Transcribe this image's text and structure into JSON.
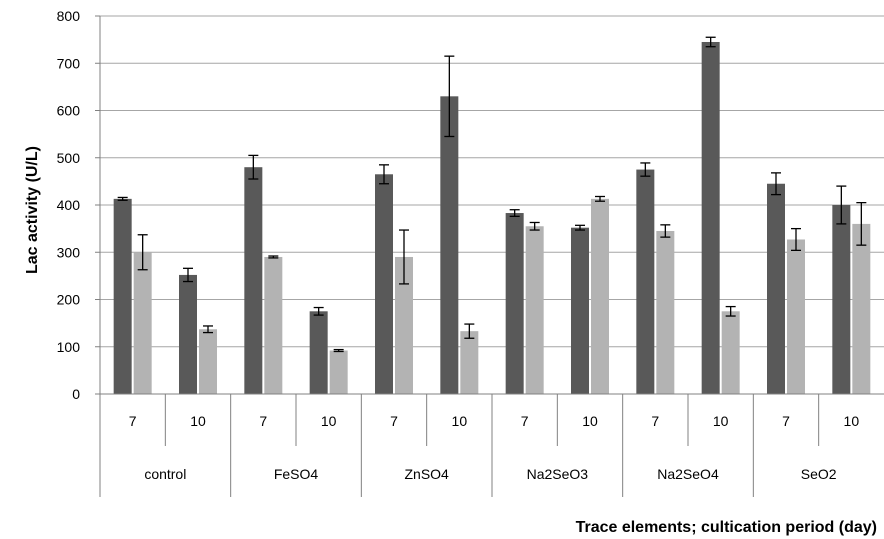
{
  "chart_data": {
    "type": "bar",
    "title": "",
    "ylabel": "Lac activity (U/L)",
    "xlabel": "Trace elements; cultication period (day)",
    "ylim": [
      0,
      800
    ],
    "yticks": [
      0,
      100,
      200,
      300,
      400,
      500,
      600,
      700,
      800
    ],
    "grid": true,
    "legend": "none",
    "groups": [
      "control",
      "FeSO4",
      "ZnSO4",
      "Na2SeO3",
      "Na2SeO4",
      "SeO2"
    ],
    "periods": [
      "7",
      "10"
    ],
    "categories": [
      "control 7",
      "control 10",
      "FeSO4 7",
      "FeSO4 10",
      "ZnSO4 7",
      "ZnSO4 10",
      "Na2SeO3 7",
      "Na2SeO3 10",
      "Na2SeO4 7",
      "Na2SeO4 10",
      "SeO2 7",
      "SeO2 10"
    ],
    "series": [
      {
        "color": "#595959",
        "values": [
          413,
          252,
          480,
          175,
          465,
          630,
          383,
          352,
          475,
          745,
          445,
          400
        ],
        "errors": [
          3,
          14,
          25,
          8,
          20,
          85,
          7,
          5,
          14,
          10,
          23,
          40
        ]
      },
      {
        "color": "#b3b3b3",
        "values": [
          300,
          137,
          290,
          92,
          290,
          133,
          355,
          413,
          345,
          175,
          327,
          360
        ],
        "errors": [
          37,
          7,
          2,
          2,
          57,
          15,
          8,
          5,
          13,
          10,
          23,
          45
        ]
      }
    ]
  }
}
